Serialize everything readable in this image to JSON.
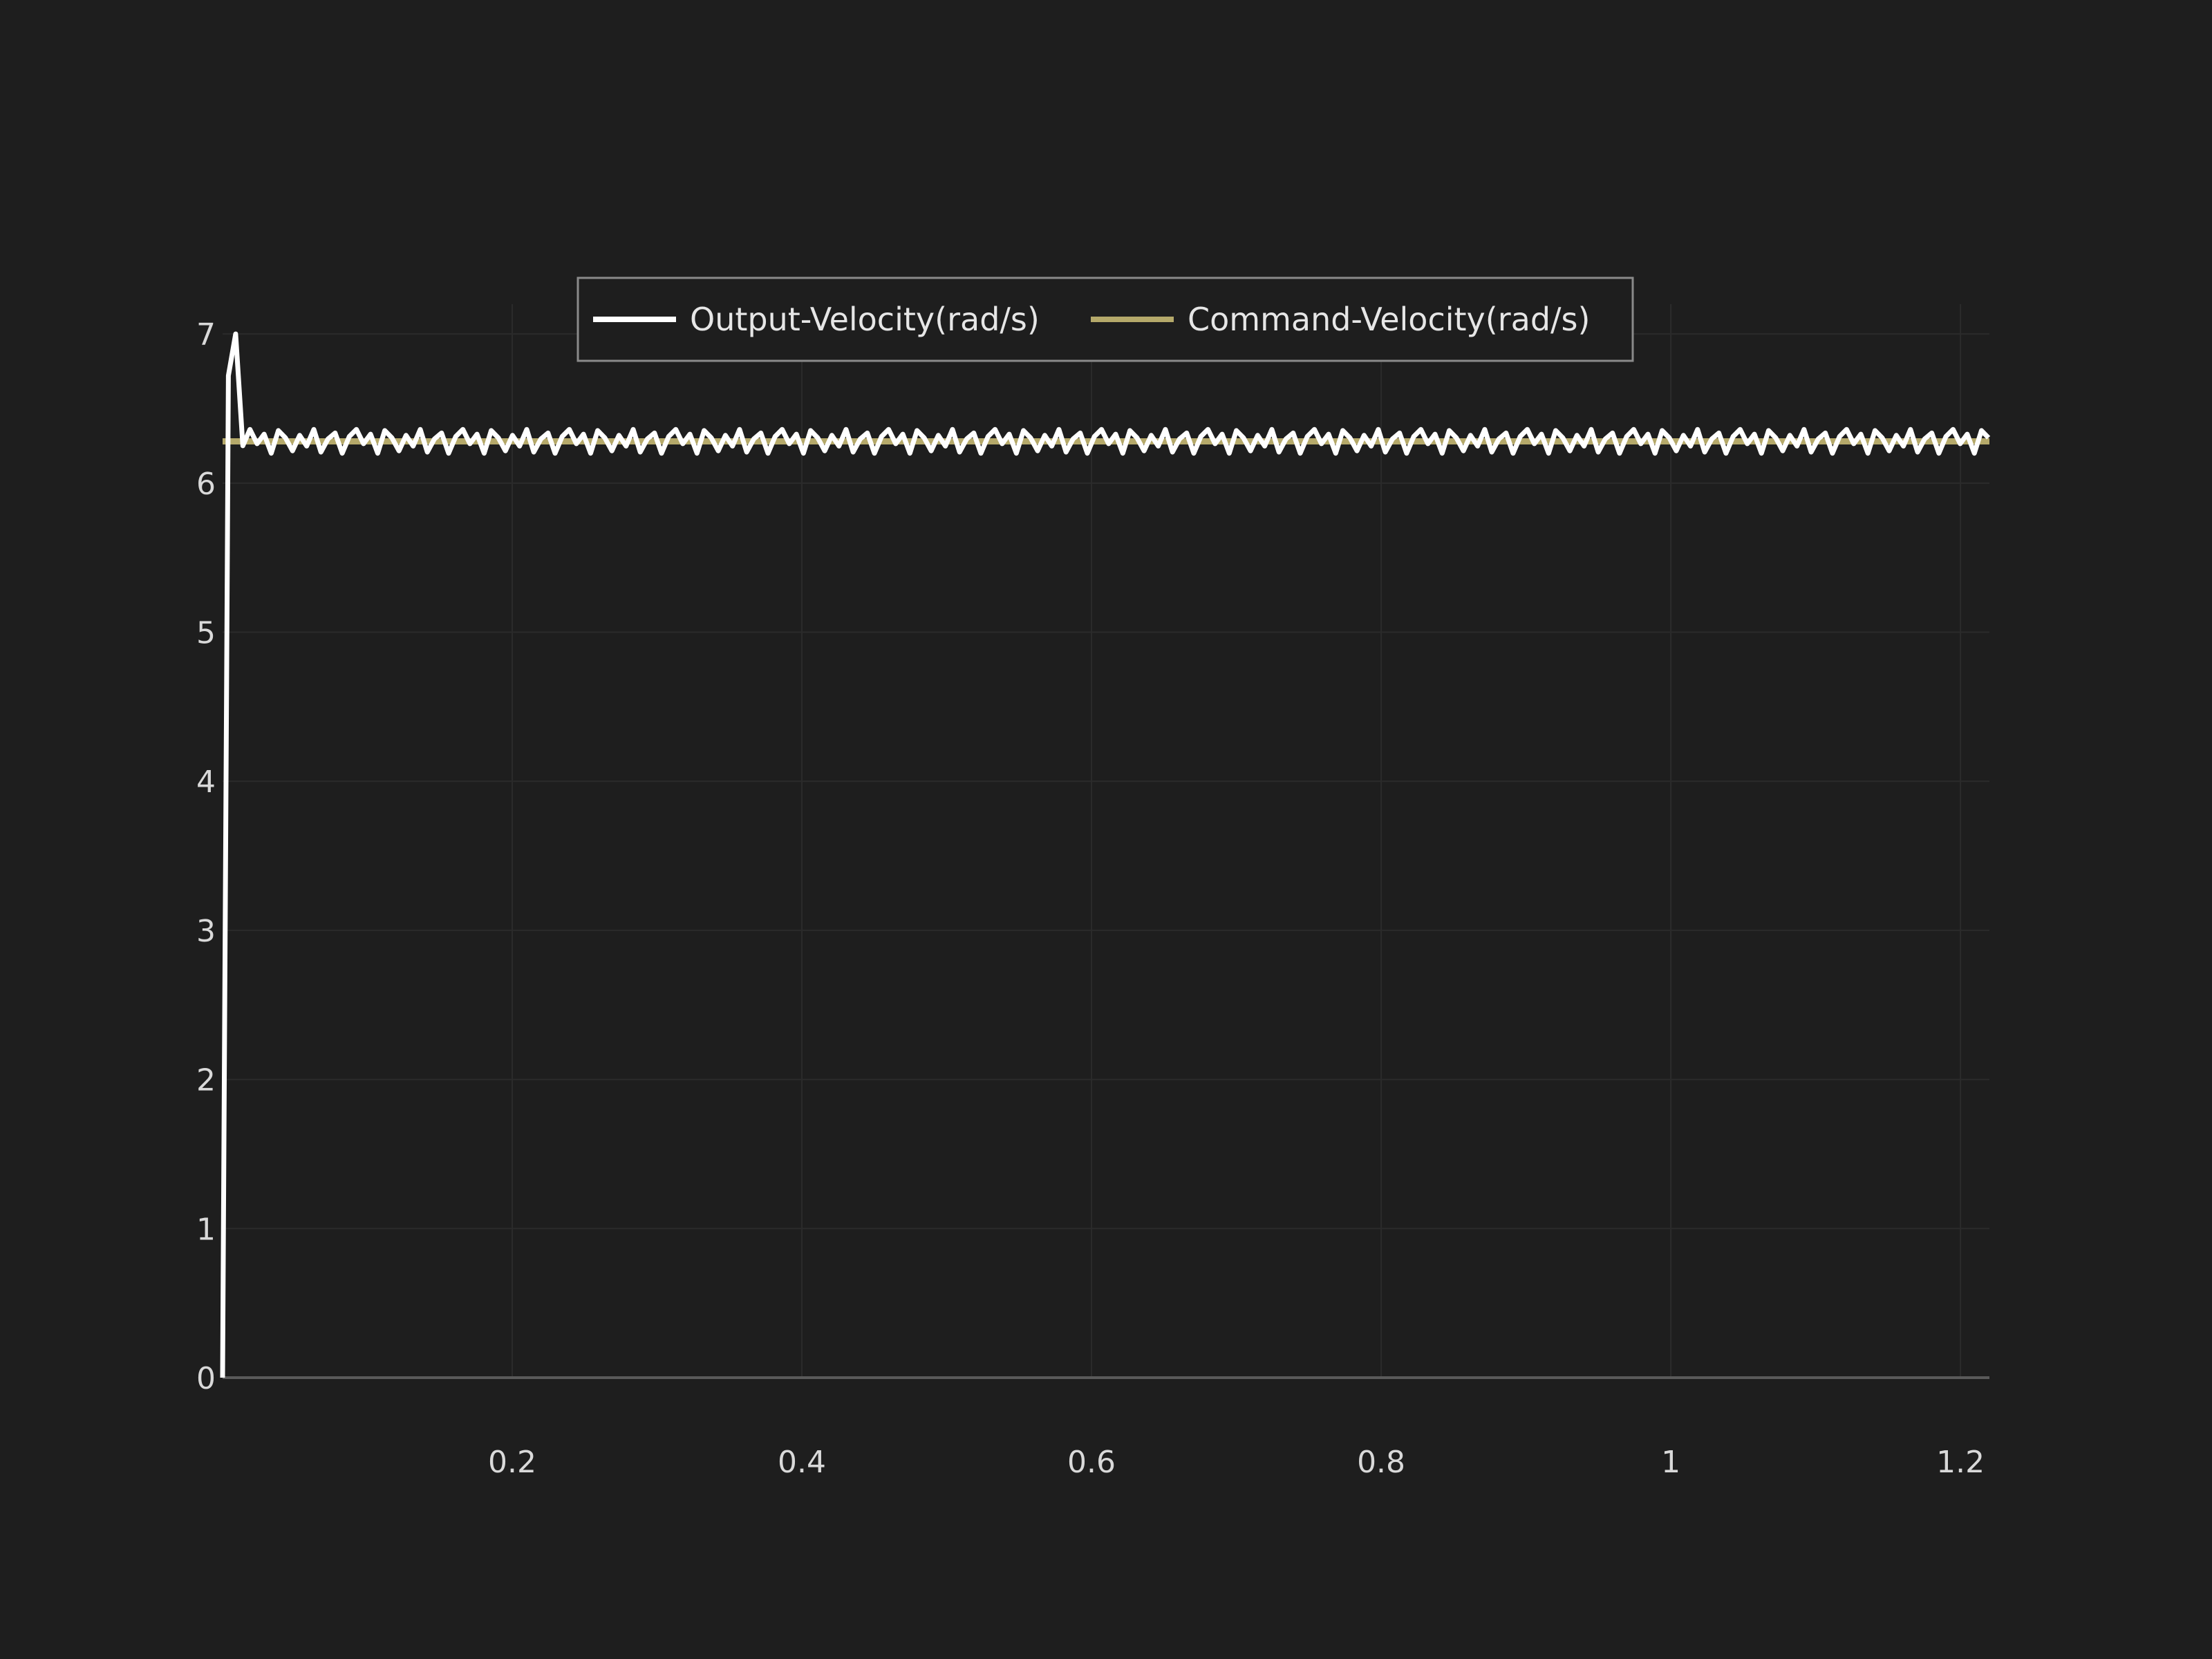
{
  "colors": {
    "background": "#1e1e1e",
    "grid": "#2b2b2b",
    "axis": "#5a5a5a",
    "legend_border": "#8a8a8a",
    "tick_text": "#d9d9d9"
  },
  "chart_data": {
    "type": "line",
    "title": "",
    "xlabel": "",
    "ylabel": "",
    "xlim": [
      0,
      1.22
    ],
    "ylim": [
      0,
      7.2
    ],
    "x_ticks": [
      0.2,
      0.4,
      0.6,
      0.8,
      1,
      1.2
    ],
    "x_tick_labels": [
      "0.2",
      "0.4",
      "0.6",
      "0.8",
      "1",
      "1.2"
    ],
    "y_ticks": [
      0,
      1,
      2,
      3,
      4,
      5,
      6,
      7
    ],
    "y_tick_labels": [
      "0",
      "1",
      "2",
      "3",
      "4",
      "5",
      "6",
      "7"
    ],
    "grid": true,
    "legend_position": "top-center",
    "series": [
      {
        "name": "Output-Velocity(rad/s)",
        "color": "#ffffff",
        "transient": [
          [
            0,
            0
          ],
          [
            0.004,
            6.72
          ],
          [
            0.009,
            7.0
          ],
          [
            0.014,
            6.25
          ]
        ],
        "oscillation": {
          "x_start": 0.014,
          "x_end": 1.22,
          "step": 0.0049,
          "mean": 6.28,
          "amplitude": 0.08
        }
      },
      {
        "name": "Command-Velocity(rad/s)",
        "color": "#b5a96a",
        "x": [
          0,
          1.22
        ],
        "y": [
          6.28,
          6.28
        ]
      }
    ]
  }
}
